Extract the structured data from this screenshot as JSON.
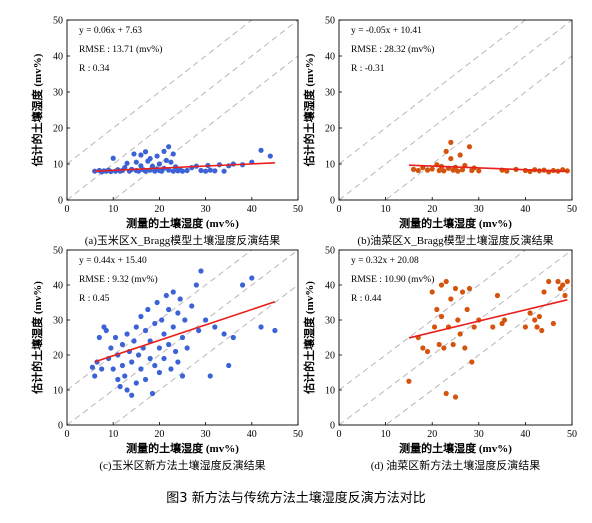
{
  "figure_caption": "图3 新方法与传统方法土壤湿度反演方法对比",
  "chart_data": [
    {
      "type": "scatter",
      "panel_caption": "(a)玉米区X_Bragg模型土壤湿度反演结果",
      "xlabel": "测量的土壤湿度 (mv%)",
      "ylabel": "估计的土壤湿度 (mv%)",
      "xlim": [
        0,
        50
      ],
      "ylim": [
        0,
        50
      ],
      "xticks": [
        0,
        10,
        20,
        30,
        40,
        50
      ],
      "yticks": [
        0,
        10,
        20,
        30,
        40,
        50
      ],
      "grid": false,
      "reference_lines": [
        "1:1",
        "1:1 ± 10"
      ],
      "point_color": "#3b62d6",
      "fit_color": "#e8201c",
      "annotations": [
        "y = 0.06x + 7.63",
        "RMSE : 13.71 (mv%)",
        "R : 0.34"
      ],
      "fit": {
        "slope": 0.06,
        "intercept": 7.63,
        "x_range": [
          6,
          45
        ]
      },
      "points": [
        {
          "x": 6,
          "y": 8
        },
        {
          "x": 7,
          "y": 8.2
        },
        {
          "x": 7.5,
          "y": 7.8
        },
        {
          "x": 8,
          "y": 8.1
        },
        {
          "x": 8.5,
          "y": 8
        },
        {
          "x": 9,
          "y": 8.3
        },
        {
          "x": 9.5,
          "y": 7.9
        },
        {
          "x": 10,
          "y": 11.6
        },
        {
          "x": 10.5,
          "y": 8
        },
        {
          "x": 11,
          "y": 8.4
        },
        {
          "x": 11.5,
          "y": 8
        },
        {
          "x": 12,
          "y": 8.2
        },
        {
          "x": 12.5,
          "y": 9
        },
        {
          "x": 13,
          "y": 10.2
        },
        {
          "x": 13.5,
          "y": 8
        },
        {
          "x": 14,
          "y": 8.5
        },
        {
          "x": 14.5,
          "y": 12.8
        },
        {
          "x": 15,
          "y": 8.2
        },
        {
          "x": 15,
          "y": 10.5
        },
        {
          "x": 15.5,
          "y": 8
        },
        {
          "x": 16,
          "y": 12.5
        },
        {
          "x": 16,
          "y": 9.5
        },
        {
          "x": 16.5,
          "y": 8.4
        },
        {
          "x": 17,
          "y": 13.4
        },
        {
          "x": 17,
          "y": 8
        },
        {
          "x": 17.5,
          "y": 10.8
        },
        {
          "x": 18,
          "y": 8.3
        },
        {
          "x": 18,
          "y": 11.5
        },
        {
          "x": 18.5,
          "y": 9.4
        },
        {
          "x": 19,
          "y": 8
        },
        {
          "x": 19.5,
          "y": 12.2
        },
        {
          "x": 19.5,
          "y": 8.6
        },
        {
          "x": 20,
          "y": 10
        },
        {
          "x": 20,
          "y": 8.2
        },
        {
          "x": 20.5,
          "y": 8
        },
        {
          "x": 21,
          "y": 13.5
        },
        {
          "x": 21,
          "y": 8.8
        },
        {
          "x": 21.5,
          "y": 11
        },
        {
          "x": 22,
          "y": 14.8
        },
        {
          "x": 22,
          "y": 8.3
        },
        {
          "x": 22.5,
          "y": 10.5
        },
        {
          "x": 23,
          "y": 8
        },
        {
          "x": 23,
          "y": 12.8
        },
        {
          "x": 23.5,
          "y": 9.2
        },
        {
          "x": 24,
          "y": 8.1
        },
        {
          "x": 24.5,
          "y": 8.4
        },
        {
          "x": 25,
          "y": 8
        },
        {
          "x": 26,
          "y": 8.2
        },
        {
          "x": 27,
          "y": 9
        },
        {
          "x": 28,
          "y": 9.4
        },
        {
          "x": 29,
          "y": 8.2
        },
        {
          "x": 30,
          "y": 8
        },
        {
          "x": 30.5,
          "y": 9.6
        },
        {
          "x": 31,
          "y": 8.3
        },
        {
          "x": 32,
          "y": 8.1
        },
        {
          "x": 33,
          "y": 9.8
        },
        {
          "x": 34,
          "y": 8
        },
        {
          "x": 35,
          "y": 9.5
        },
        {
          "x": 36,
          "y": 10
        },
        {
          "x": 38,
          "y": 9.8
        },
        {
          "x": 40,
          "y": 10.5
        },
        {
          "x": 42,
          "y": 13.8
        },
        {
          "x": 44,
          "y": 12.2
        }
      ]
    },
    {
      "type": "scatter",
      "panel_caption": "(b)油菜区X_Bragg模型土壤湿度反演结果",
      "xlabel": "测量的土壤湿度 (mv%)",
      "ylabel": "估计的土壤湿度 (mv%)",
      "xlim": [
        0,
        50
      ],
      "ylim": [
        0,
        50
      ],
      "xticks": [
        0,
        10,
        20,
        30,
        40,
        50
      ],
      "yticks": [
        0,
        10,
        20,
        30,
        40,
        50
      ],
      "grid": false,
      "reference_lines": [
        "1:1",
        "1:1 ± 10"
      ],
      "point_color": "#d4540e",
      "fit_color": "#e8201c",
      "annotations": [
        "y = -0.05x + 10.41",
        "RMSE : 28.32 (mv%)",
        "R : -0.31"
      ],
      "fit": {
        "slope": -0.05,
        "intercept": 10.41,
        "x_range": [
          15,
          49
        ]
      },
      "points": [
        {
          "x": 16,
          "y": 8.5
        },
        {
          "x": 17,
          "y": 8.2
        },
        {
          "x": 18,
          "y": 9
        },
        {
          "x": 19,
          "y": 8.3
        },
        {
          "x": 20,
          "y": 8.6
        },
        {
          "x": 21,
          "y": 9.8
        },
        {
          "x": 21.5,
          "y": 8.2
        },
        {
          "x": 22,
          "y": 9.3
        },
        {
          "x": 22.5,
          "y": 8.1
        },
        {
          "x": 23,
          "y": 13.5
        },
        {
          "x": 23.5,
          "y": 8.8
        },
        {
          "x": 24,
          "y": 16
        },
        {
          "x": 24,
          "y": 11.5
        },
        {
          "x": 24.5,
          "y": 8.3
        },
        {
          "x": 25,
          "y": 9.1
        },
        {
          "x": 25.5,
          "y": 8
        },
        {
          "x": 26,
          "y": 12.5
        },
        {
          "x": 26.5,
          "y": 8.4
        },
        {
          "x": 27,
          "y": 9.6
        },
        {
          "x": 28,
          "y": 14.8
        },
        {
          "x": 28.5,
          "y": 8.2
        },
        {
          "x": 29,
          "y": 8.9
        },
        {
          "x": 30,
          "y": 8.1
        },
        {
          "x": 35,
          "y": 8.3
        },
        {
          "x": 36,
          "y": 8
        },
        {
          "x": 38,
          "y": 8.5
        },
        {
          "x": 40,
          "y": 8.2
        },
        {
          "x": 41,
          "y": 7.9
        },
        {
          "x": 42,
          "y": 8.4
        },
        {
          "x": 43,
          "y": 8.1
        },
        {
          "x": 44,
          "y": 8.3
        },
        {
          "x": 45,
          "y": 7.8
        },
        {
          "x": 46,
          "y": 8.2
        },
        {
          "x": 47,
          "y": 8
        },
        {
          "x": 48,
          "y": 8.4
        },
        {
          "x": 49,
          "y": 8.1
        }
      ]
    },
    {
      "type": "scatter",
      "panel_caption": "(c)玉米区新方法土壤湿度反演结果",
      "xlabel": "测量的土壤湿度 (mv%)",
      "ylabel": "估计的土壤湿度 (mv%)",
      "xlim": [
        0,
        50
      ],
      "ylim": [
        0,
        50
      ],
      "xticks": [
        0,
        10,
        20,
        30,
        40,
        50
      ],
      "yticks": [
        0,
        10,
        20,
        30,
        40,
        50
      ],
      "grid": false,
      "reference_lines": [
        "1:1",
        "1:1 ± 10"
      ],
      "point_color": "#3b62d6",
      "fit_color": "#e8201c",
      "annotations": [
        "y = 0.44x + 15.40",
        "RMSE : 9.32 (mv%)",
        "R : 0.45"
      ],
      "fit": {
        "slope": 0.44,
        "intercept": 15.4,
        "x_range": [
          6,
          45
        ]
      },
      "points": [
        {
          "x": 5.5,
          "y": 16.5
        },
        {
          "x": 6,
          "y": 14
        },
        {
          "x": 6.5,
          "y": 18
        },
        {
          "x": 7,
          "y": 25
        },
        {
          "x": 7.5,
          "y": 16
        },
        {
          "x": 8,
          "y": 28
        },
        {
          "x": 8.5,
          "y": 27
        },
        {
          "x": 9,
          "y": 19
        },
        {
          "x": 9.5,
          "y": 22
        },
        {
          "x": 10,
          "y": 16
        },
        {
          "x": 10.5,
          "y": 25
        },
        {
          "x": 11,
          "y": 13
        },
        {
          "x": 11,
          "y": 20
        },
        {
          "x": 11.5,
          "y": 11
        },
        {
          "x": 12,
          "y": 23
        },
        {
          "x": 12,
          "y": 17
        },
        {
          "x": 12.5,
          "y": 14
        },
        {
          "x": 13,
          "y": 26
        },
        {
          "x": 13,
          "y": 10
        },
        {
          "x": 13.5,
          "y": 21
        },
        {
          "x": 14,
          "y": 18
        },
        {
          "x": 14,
          "y": 8.5
        },
        {
          "x": 14.5,
          "y": 24
        },
        {
          "x": 15,
          "y": 12
        },
        {
          "x": 15,
          "y": 28
        },
        {
          "x": 15.5,
          "y": 20
        },
        {
          "x": 16,
          "y": 16
        },
        {
          "x": 16,
          "y": 31
        },
        {
          "x": 16.5,
          "y": 22
        },
        {
          "x": 17,
          "y": 27
        },
        {
          "x": 17,
          "y": 13
        },
        {
          "x": 17.5,
          "y": 33
        },
        {
          "x": 18,
          "y": 19
        },
        {
          "x": 18,
          "y": 24
        },
        {
          "x": 18.5,
          "y": 9
        },
        {
          "x": 19,
          "y": 29
        },
        {
          "x": 19,
          "y": 17
        },
        {
          "x": 19.5,
          "y": 35
        },
        {
          "x": 20,
          "y": 22
        },
        {
          "x": 20,
          "y": 15
        },
        {
          "x": 20.5,
          "y": 30
        },
        {
          "x": 21,
          "y": 26
        },
        {
          "x": 21,
          "y": 19
        },
        {
          "x": 21.5,
          "y": 37
        },
        {
          "x": 22,
          "y": 33
        },
        {
          "x": 22,
          "y": 23
        },
        {
          "x": 22.5,
          "y": 16
        },
        {
          "x": 23,
          "y": 28
        },
        {
          "x": 23,
          "y": 38
        },
        {
          "x": 23.5,
          "y": 21
        },
        {
          "x": 24,
          "y": 32
        },
        {
          "x": 24,
          "y": 18
        },
        {
          "x": 24.5,
          "y": 36
        },
        {
          "x": 25,
          "y": 25
        },
        {
          "x": 25,
          "y": 14
        },
        {
          "x": 25.5,
          "y": 30
        },
        {
          "x": 26,
          "y": 22
        },
        {
          "x": 27,
          "y": 34
        },
        {
          "x": 28,
          "y": 40
        },
        {
          "x": 28.5,
          "y": 27
        },
        {
          "x": 29,
          "y": 44
        },
        {
          "x": 30,
          "y": 30
        },
        {
          "x": 31,
          "y": 14
        },
        {
          "x": 32,
          "y": 28
        },
        {
          "x": 34,
          "y": 26
        },
        {
          "x": 35,
          "y": 17
        },
        {
          "x": 36,
          "y": 25
        },
        {
          "x": 38,
          "y": 40
        },
        {
          "x": 40,
          "y": 42
        },
        {
          "x": 42,
          "y": 28
        },
        {
          "x": 45,
          "y": 27
        }
      ]
    },
    {
      "type": "scatter",
      "panel_caption": "(d) 油菜区新方法土壤湿度反演结果",
      "xlabel": "测量的土壤湿度 (mv%)",
      "ylabel": "估计的土壤湿度 (mv%)",
      "xlim": [
        0,
        50
      ],
      "ylim": [
        0,
        50
      ],
      "xticks": [
        0,
        10,
        20,
        30,
        40,
        50
      ],
      "yticks": [
        0,
        10,
        20,
        30,
        40,
        50
      ],
      "grid": false,
      "reference_lines": [
        "1:1",
        "1:1 ± 10"
      ],
      "point_color": "#d4540e",
      "fit_color": "#e8201c",
      "annotations": [
        "y = 0.32x + 20.08",
        "RMSE : 10.90 (mv%)",
        "R : 0.44"
      ],
      "fit": {
        "slope": 0.32,
        "intercept": 20.08,
        "x_range": [
          15,
          49
        ]
      },
      "points": [
        {
          "x": 15,
          "y": 12.5
        },
        {
          "x": 17,
          "y": 25
        },
        {
          "x": 18,
          "y": 22
        },
        {
          "x": 19,
          "y": 21
        },
        {
          "x": 20,
          "y": 38
        },
        {
          "x": 20.5,
          "y": 28
        },
        {
          "x": 21,
          "y": 33
        },
        {
          "x": 21.5,
          "y": 23
        },
        {
          "x": 22,
          "y": 40
        },
        {
          "x": 22,
          "y": 31
        },
        {
          "x": 22.5,
          "y": 22
        },
        {
          "x": 23,
          "y": 9
        },
        {
          "x": 23,
          "y": 41
        },
        {
          "x": 23.5,
          "y": 28
        },
        {
          "x": 24,
          "y": 36
        },
        {
          "x": 24.5,
          "y": 23
        },
        {
          "x": 25,
          "y": 8
        },
        {
          "x": 25,
          "y": 39
        },
        {
          "x": 25.5,
          "y": 30
        },
        {
          "x": 26,
          "y": 26
        },
        {
          "x": 26.5,
          "y": 38
        },
        {
          "x": 27,
          "y": 22
        },
        {
          "x": 27.5,
          "y": 33
        },
        {
          "x": 28,
          "y": 39
        },
        {
          "x": 28.5,
          "y": 18
        },
        {
          "x": 29,
          "y": 28
        },
        {
          "x": 30,
          "y": 30
        },
        {
          "x": 33,
          "y": 28
        },
        {
          "x": 34,
          "y": 37
        },
        {
          "x": 35,
          "y": 29
        },
        {
          "x": 35.5,
          "y": 30
        },
        {
          "x": 40,
          "y": 28
        },
        {
          "x": 41,
          "y": 32
        },
        {
          "x": 42,
          "y": 30
        },
        {
          "x": 42.5,
          "y": 28
        },
        {
          "x": 43,
          "y": 31
        },
        {
          "x": 43.5,
          "y": 27
        },
        {
          "x": 44,
          "y": 38
        },
        {
          "x": 45,
          "y": 41
        },
        {
          "x": 46,
          "y": 29
        },
        {
          "x": 47,
          "y": 41
        },
        {
          "x": 47.5,
          "y": 39
        },
        {
          "x": 48,
          "y": 40
        },
        {
          "x": 48.5,
          "y": 37
        },
        {
          "x": 49,
          "y": 41
        }
      ]
    }
  ]
}
